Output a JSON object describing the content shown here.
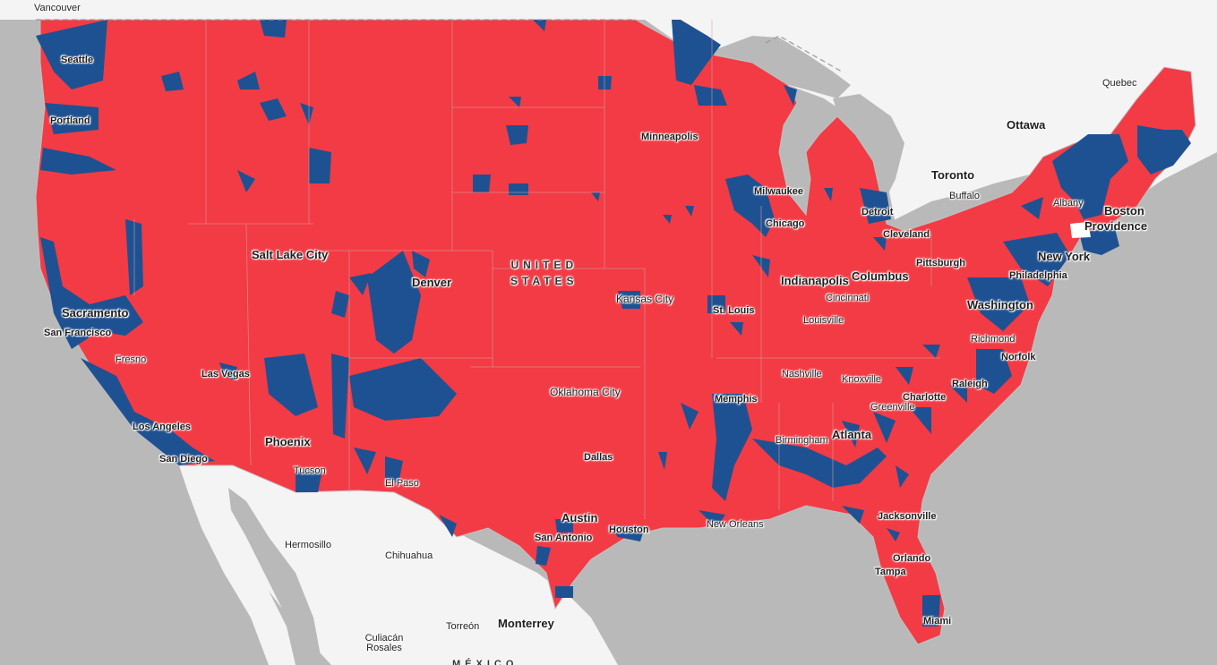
{
  "colors": {
    "republican": "#f23b45",
    "democrat": "#1e5192",
    "water": "#b9b9b9",
    "foreign_land": "#f4f4f4",
    "border": "#c0c0c0"
  },
  "country_label": {
    "line1": "UNITED",
    "line2": "STATES"
  },
  "mexico_label": "MÉXICO",
  "us_cities": [
    "Seattle",
    "Portland",
    "Sacramento",
    "San Francisco",
    "Fresno",
    "Los Angeles",
    "San Diego",
    "Las Vegas",
    "Phoenix",
    "Tucson",
    "El Paso",
    "Salt Lake City",
    "Denver",
    "Kansas City",
    "Oklahoma City",
    "Dallas",
    "Austin",
    "San Antonio",
    "Houston",
    "New Orleans",
    "Minneapolis",
    "Milwaukee",
    "Chicago",
    "Detroit",
    "St. Louis",
    "Memphis",
    "Nashville",
    "Knoxville",
    "Louisville",
    "Indianapolis",
    "Cincinnati",
    "Columbus",
    "Cleveland",
    "Pittsburgh",
    "Buffalo",
    "Albany",
    "Boston",
    "Providence",
    "New York",
    "Philadelphia",
    "Washington",
    "Richmond",
    "Norfolk",
    "Raleigh",
    "Charlotte",
    "Greenville",
    "Atlanta",
    "Birmingham",
    "Jacksonville",
    "Orlando",
    "Tampa",
    "Miami"
  ],
  "foreign_cities": [
    "Vancouver",
    "Quebec",
    "Ottawa",
    "Toronto",
    "Hermosillo",
    "Chihuahua",
    "Torreón",
    "Monterrey",
    "Culiacán Rosales"
  ]
}
